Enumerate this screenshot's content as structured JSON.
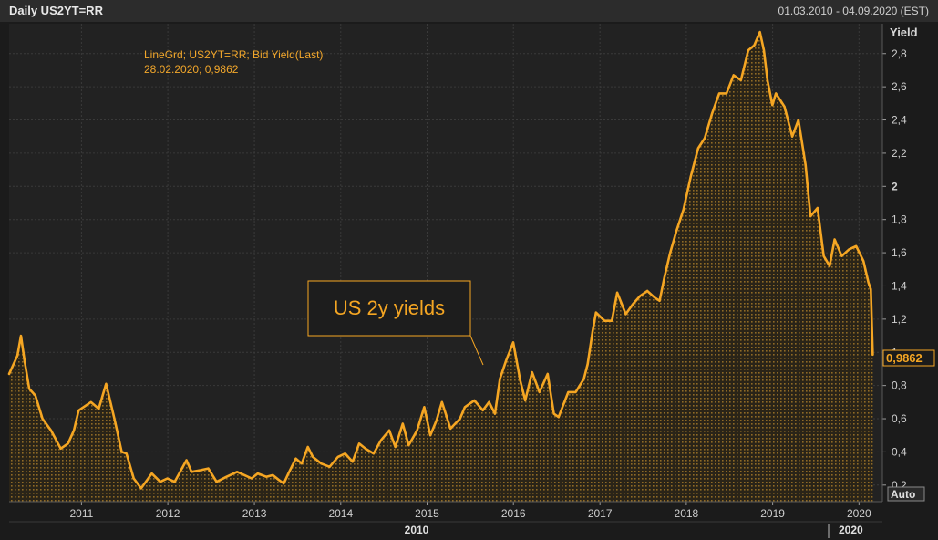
{
  "header": {
    "title": "Daily US2YT=RR",
    "date_range": "01.03.2010 - 04.09.2020 (EST)"
  },
  "colors": {
    "line": "#f5a623",
    "annotation_text": "#f2a72b",
    "background": "#1b1b1b",
    "plot_background": "#222222",
    "grid": "#3a3a3a",
    "axis_text": "#cfcfcf"
  },
  "legend": {
    "line1": "LineGrd; US2YT=RR; Bid Yield(Last)",
    "line2": "28.02.2020; 0,9862"
  },
  "callout": {
    "text": "US 2y yields"
  },
  "axis": {
    "y_title": "Yield",
    "auto_label": "Auto",
    "last_value_label": "0,9862",
    "era_left": "2010",
    "era_right": "2020"
  },
  "chart_data": {
    "type": "area",
    "title": "Daily US2YT=RR",
    "ylabel": "Yield",
    "ylim": [
      0.1,
      2.98
    ],
    "yticks": [
      0.2,
      0.4,
      0.6,
      0.8,
      1,
      1.2,
      1.4,
      1.6,
      1.8,
      2,
      2.2,
      2.4,
      2.6,
      2.8
    ],
    "ytick_labels": [
      "0,2",
      "0,4",
      "0,6",
      "0,8",
      "1",
      "1,2",
      "1,4",
      "1,6",
      "1,8",
      "2",
      "2,2",
      "2,4",
      "2,6",
      "2,8"
    ],
    "xlim": [
      "2010-03-01",
      "2020-04-09"
    ],
    "xticks": [
      "2011-01-01",
      "2012-01-01",
      "2013-01-01",
      "2014-01-01",
      "2015-01-01",
      "2016-01-01",
      "2017-01-01",
      "2018-01-01",
      "2019-01-01",
      "2020-01-01"
    ],
    "xtick_labels": [
      "2011",
      "2012",
      "2013",
      "2014",
      "2015",
      "2016",
      "2017",
      "2018",
      "2019",
      "2020"
    ],
    "grid": true,
    "series": [
      {
        "name": "US2YT=RR",
        "x": [
          "2010-03-01",
          "2010-04-05",
          "2010-04-20",
          "2010-05-05",
          "2010-05-25",
          "2010-06-20",
          "2010-07-20",
          "2010-08-25",
          "2010-10-05",
          "2010-11-05",
          "2010-11-30",
          "2010-12-20",
          "2011-02-10",
          "2011-03-15",
          "2011-04-15",
          "2011-05-20",
          "2011-06-20",
          "2011-07-10",
          "2011-08-10",
          "2011-09-10",
          "2011-10-25",
          "2011-11-30",
          "2011-12-30",
          "2012-01-30",
          "2012-03-20",
          "2012-04-10",
          "2012-05-20",
          "2012-06-20",
          "2012-07-25",
          "2012-09-05",
          "2012-10-20",
          "2012-11-20",
          "2012-12-20",
          "2013-01-15",
          "2013-02-20",
          "2013-03-20",
          "2013-04-15",
          "2013-05-05",
          "2013-05-25",
          "2013-06-25",
          "2013-07-20",
          "2013-08-15",
          "2013-09-05",
          "2013-10-10",
          "2013-11-15",
          "2013-12-20",
          "2014-01-20",
          "2014-02-20",
          "2014-03-20",
          "2014-04-15",
          "2014-05-20",
          "2014-06-20",
          "2014-07-25",
          "2014-08-20",
          "2014-09-20",
          "2014-10-15",
          "2014-11-20",
          "2014-12-20",
          "2015-01-15",
          "2015-02-10",
          "2015-03-05",
          "2015-04-10",
          "2015-05-20",
          "2015-06-10",
          "2015-07-20",
          "2015-08-25",
          "2015-09-20",
          "2015-10-15",
          "2015-11-05",
          "2015-12-01",
          "2015-12-31",
          "2016-01-30",
          "2016-02-20",
          "2016-03-20",
          "2016-04-20",
          "2016-05-25",
          "2016-06-20",
          "2016-07-10",
          "2016-08-20",
          "2016-09-20",
          "2016-10-25",
          "2016-11-10",
          "2016-11-30",
          "2016-12-15",
          "2017-01-20",
          "2017-02-20",
          "2017-03-15",
          "2017-04-20",
          "2017-05-20",
          "2017-06-20",
          "2017-07-20",
          "2017-08-20",
          "2017-09-10",
          "2017-09-30",
          "2017-10-25",
          "2017-11-20",
          "2017-12-20",
          "2018-01-20",
          "2018-02-20",
          "2018-03-20",
          "2018-04-20",
          "2018-05-20",
          "2018-06-20",
          "2018-07-20",
          "2018-08-20",
          "2018-09-20",
          "2018-10-15",
          "2018-11-08",
          "2018-11-25",
          "2018-12-10",
          "2018-12-31",
          "2019-01-15",
          "2019-02-20",
          "2019-03-25",
          "2019-04-20",
          "2019-05-20",
          "2019-06-10",
          "2019-07-10",
          "2019-08-05",
          "2019-08-30",
          "2019-09-20",
          "2019-10-20",
          "2019-11-20",
          "2019-12-20",
          "2020-01-20",
          "2020-02-10",
          "2020-02-20",
          "2020-02-28"
        ],
        "values": [
          0.87,
          0.98,
          1.1,
          0.95,
          0.78,
          0.74,
          0.6,
          0.53,
          0.42,
          0.45,
          0.53,
          0.65,
          0.7,
          0.66,
          0.81,
          0.6,
          0.4,
          0.39,
          0.24,
          0.18,
          0.27,
          0.22,
          0.24,
          0.22,
          0.35,
          0.28,
          0.29,
          0.3,
          0.22,
          0.25,
          0.28,
          0.26,
          0.24,
          0.27,
          0.25,
          0.26,
          0.23,
          0.21,
          0.27,
          0.36,
          0.33,
          0.43,
          0.37,
          0.33,
          0.31,
          0.37,
          0.39,
          0.34,
          0.45,
          0.42,
          0.39,
          0.47,
          0.53,
          0.43,
          0.57,
          0.44,
          0.53,
          0.67,
          0.5,
          0.59,
          0.7,
          0.54,
          0.6,
          0.67,
          0.71,
          0.65,
          0.7,
          0.63,
          0.84,
          0.95,
          1.06,
          0.83,
          0.71,
          0.88,
          0.76,
          0.87,
          0.63,
          0.61,
          0.76,
          0.76,
          0.84,
          0.93,
          1.12,
          1.24,
          1.19,
          1.19,
          1.36,
          1.23,
          1.29,
          1.34,
          1.37,
          1.33,
          1.31,
          1.45,
          1.6,
          1.73,
          1.86,
          2.06,
          2.23,
          2.29,
          2.44,
          2.56,
          2.56,
          2.67,
          2.64,
          2.82,
          2.85,
          2.93,
          2.82,
          2.64,
          2.49,
          2.56,
          2.48,
          2.3,
          2.4,
          2.13,
          1.82,
          1.87,
          1.58,
          1.52,
          1.68,
          1.58,
          1.62,
          1.64,
          1.55,
          1.42,
          1.38,
          0.9862
        ]
      }
    ]
  }
}
